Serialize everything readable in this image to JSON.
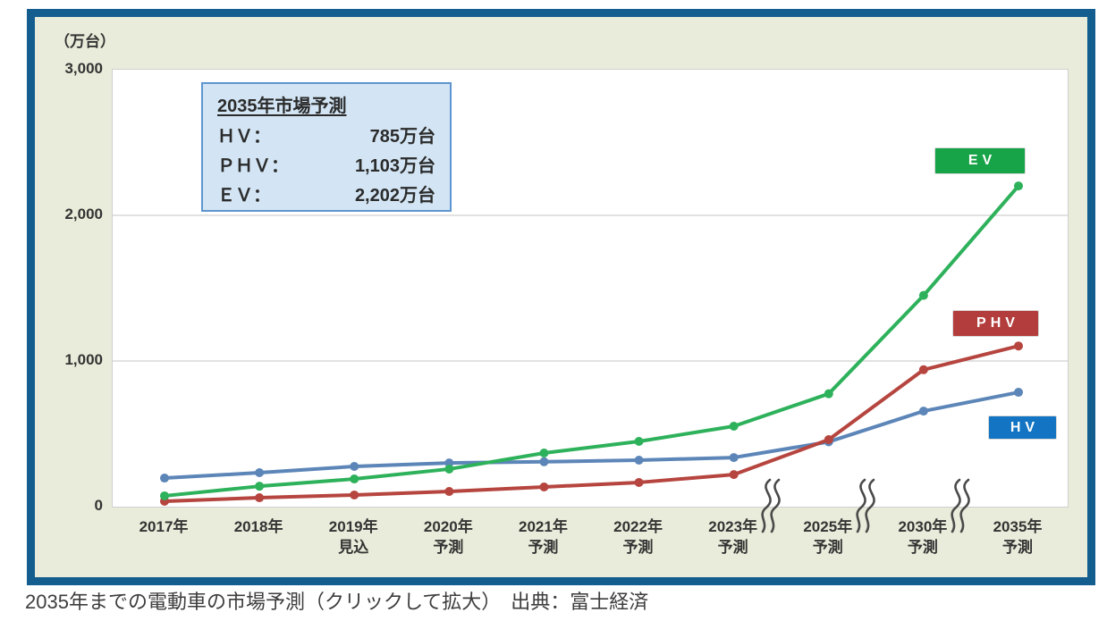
{
  "caption": "2035年までの電動車の市場予測（クリックして拡大）　出典：富士経済",
  "legend_box": {
    "title": "2035年市場予測",
    "rows": [
      {
        "label": "ＨＶ：",
        "value": "785万台"
      },
      {
        "label": "ＰＨＶ：",
        "value": "1,103万台"
      },
      {
        "label": "ＥＶ：",
        "value": "2,202万台"
      }
    ]
  },
  "colors": {
    "panel_border": "#135d8f",
    "panel_background": "#e9ecda",
    "plot_background": "#ffffff",
    "gridline": "#d9d9d9",
    "legend_background": "#d3e5f4",
    "legend_border": "#5e94cf",
    "ev_line": "#2eb15b",
    "ev_badge": "#17a347",
    "phv_line": "#b6453f",
    "phv_badge": "#b33d3c",
    "hv_line": "#5c85b8",
    "hv_badge": "#1274c2",
    "axis_break_stroke": "#4a4a4a"
  },
  "chart_data": {
    "type": "line",
    "title": "",
    "unit_label": "（万台）",
    "ylabel": "（万台）",
    "xlabel": "",
    "ylim": [
      0,
      3000
    ],
    "yticks": [
      {
        "value": 3000,
        "label": "3,000"
      },
      {
        "value": 2000,
        "label": "2,000"
      },
      {
        "value": 1000,
        "label": "1,000"
      },
      {
        "value": 0,
        "label": "0"
      }
    ],
    "grid": "horizontal-only",
    "legend_position": "inline-badges-right",
    "axis_break_between": [
      "2023年予測/2025年予測",
      "2025年予測/2030年予測",
      "2030年予測/2035年予測"
    ],
    "categories": [
      {
        "label": "2017年",
        "sub": ""
      },
      {
        "label": "2018年",
        "sub": ""
      },
      {
        "label": "2019年",
        "sub": "見込"
      },
      {
        "label": "2020年",
        "sub": "予測"
      },
      {
        "label": "2021年",
        "sub": "予測"
      },
      {
        "label": "2022年",
        "sub": "予測"
      },
      {
        "label": "2023年",
        "sub": "予測"
      },
      {
        "label": "2025年",
        "sub": "予測"
      },
      {
        "label": "2030年",
        "sub": "予測"
      },
      {
        "label": "2035年",
        "sub": "予測"
      }
    ],
    "series": [
      {
        "name": "HV",
        "color": "#5c85b8",
        "badge_color": "#1274c2",
        "values": [
          196,
          233,
          276,
          300,
          308,
          319,
          337,
          445,
          656,
          785
        ]
      },
      {
        "name": "PHV",
        "color": "#b6453f",
        "badge_color": "#b33d3c",
        "values": [
          37,
          61,
          80,
          104,
          135,
          166,
          220,
          460,
          940,
          1103
        ]
      },
      {
        "name": "EV",
        "color": "#2eb15b",
        "badge_color": "#17a347",
        "values": [
          74,
          140,
          190,
          258,
          368,
          448,
          552,
          775,
          1450,
          2202
        ]
      }
    ]
  }
}
